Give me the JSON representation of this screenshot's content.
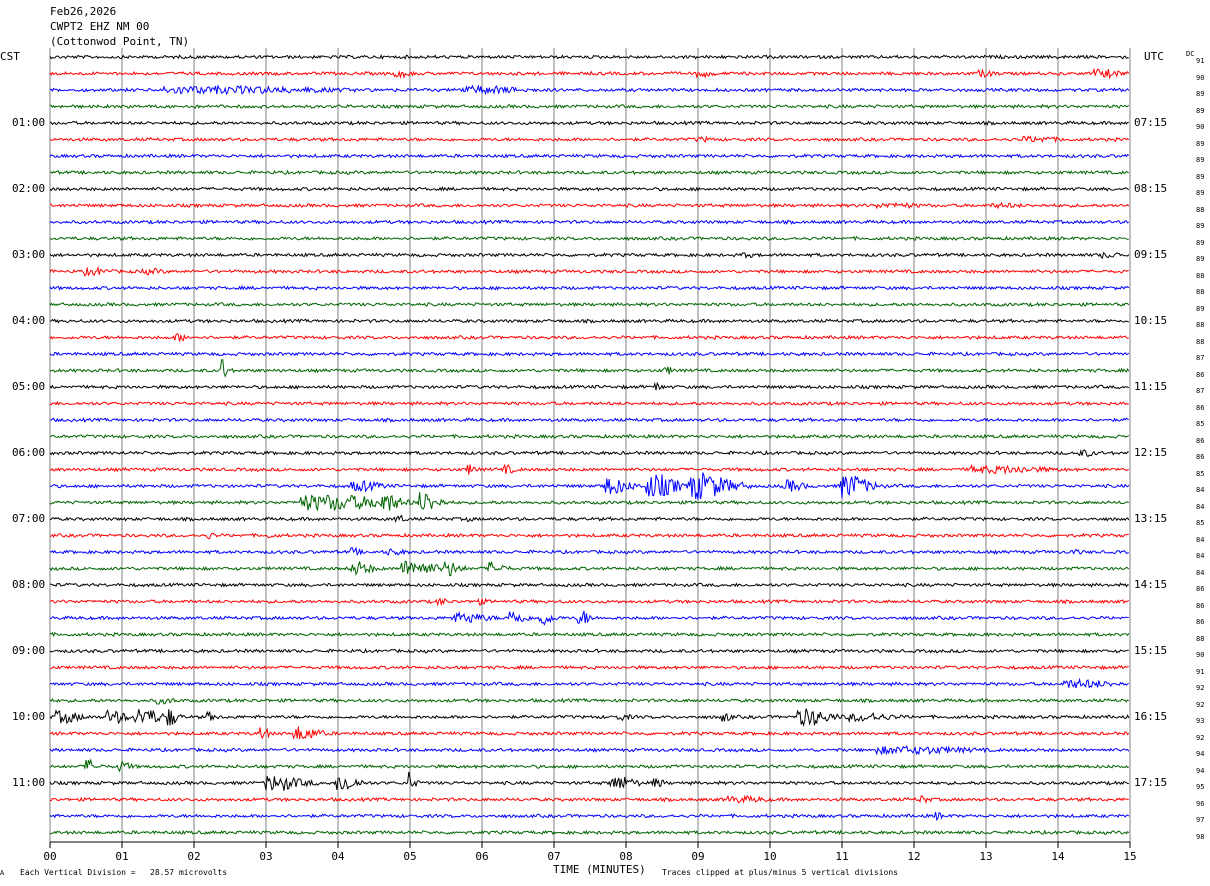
{
  "header": {
    "date": "Feb26,2026",
    "station": "CWPT2 EHZ NM 00",
    "location": "(Cottonwod Point, TN)"
  },
  "left_tz": "CST",
  "right_tz": "UTC",
  "dc_title": "DC",
  "footer": {
    "scale_note": "Each Vertical Division =   28.57 microvolts",
    "xlabel": "TIME (MINUTES)",
    "clip_note": "Traces clipped at plus/minus 5 vertical divisions",
    "corner_mark": "A"
  },
  "colors": {
    "trace_cycle": [
      "#000000",
      "#ff0000",
      "#0000ff",
      "#006400"
    ],
    "grid": "#808080"
  },
  "chart_data": {
    "type": "line",
    "title": "",
    "xlabel": "TIME (MINUTES)",
    "x_range": [
      0,
      15
    ],
    "x_ticks": [
      "00",
      "01",
      "02",
      "03",
      "04",
      "05",
      "06",
      "07",
      "08",
      "09",
      "10",
      "11",
      "12",
      "13",
      "14",
      "15"
    ],
    "grid": true,
    "left_hour_labels": [
      "01:00",
      "02:00",
      "03:00",
      "04:00",
      "05:00",
      "06:00",
      "07:00",
      "08:00",
      "09:00",
      "10:00",
      "11:00"
    ],
    "right_hour_labels": [
      "07:15",
      "08:15",
      "09:15",
      "10:15",
      "11:15",
      "12:15",
      "13:15",
      "14:15",
      "15:15",
      "16:15",
      "17:15"
    ],
    "dc_offsets": [
      91,
      90,
      89,
      89,
      90,
      89,
      89,
      89,
      89,
      88,
      89,
      89,
      89,
      88,
      88,
      89,
      88,
      88,
      87,
      86,
      87,
      86,
      85,
      86,
      86,
      85,
      84,
      84,
      85,
      84,
      84,
      84,
      86,
      86,
      86,
      88,
      90,
      91,
      92,
      92,
      93,
      92,
      94,
      94,
      95,
      96,
      97,
      98
    ],
    "events": [
      {
        "trace": 1,
        "t": 4.8,
        "dur": 0.3,
        "amp": 0.4
      },
      {
        "trace": 1,
        "t": 9.0,
        "dur": 0.3,
        "amp": 0.4
      },
      {
        "trace": 1,
        "t": 12.9,
        "dur": 0.3,
        "amp": 0.4
      },
      {
        "trace": 1,
        "t": 14.5,
        "dur": 0.5,
        "amp": 0.5
      },
      {
        "trace": 2,
        "t": 1.6,
        "dur": 3.2,
        "amp": 0.45
      },
      {
        "trace": 2,
        "t": 5.7,
        "dur": 1.2,
        "amp": 0.45
      },
      {
        "trace": 5,
        "t": 9.0,
        "dur": 0.3,
        "amp": 0.3
      },
      {
        "trace": 5,
        "t": 13.5,
        "dur": 0.8,
        "amp": 0.35
      },
      {
        "trace": 9,
        "t": 11.5,
        "dur": 1.0,
        "amp": 0.3
      },
      {
        "trace": 9,
        "t": 13.1,
        "dur": 0.6,
        "amp": 0.3
      },
      {
        "trace": 12,
        "t": 9.6,
        "dur": 0.3,
        "amp": 0.3
      },
      {
        "trace": 12,
        "t": 14.6,
        "dur": 0.5,
        "amp": 0.35
      },
      {
        "trace": 13,
        "t": 0.5,
        "dur": 0.4,
        "amp": 0.45
      },
      {
        "trace": 13,
        "t": 1.3,
        "dur": 0.4,
        "amp": 0.35
      },
      {
        "trace": 17,
        "t": 1.75,
        "dur": 0.15,
        "amp": 0.5
      },
      {
        "trace": 19,
        "t": 2.37,
        "dur": 0.05,
        "amp": 1.6
      },
      {
        "trace": 19,
        "t": 8.55,
        "dur": 0.1,
        "amp": 0.5
      },
      {
        "trace": 20,
        "t": 8.4,
        "dur": 0.1,
        "amp": 0.5
      },
      {
        "trace": 24,
        "t": 14.3,
        "dur": 0.3,
        "amp": 0.4
      },
      {
        "trace": 25,
        "t": 5.8,
        "dur": 0.1,
        "amp": 0.6
      },
      {
        "trace": 25,
        "t": 6.3,
        "dur": 0.2,
        "amp": 0.5
      },
      {
        "trace": 25,
        "t": 12.8,
        "dur": 1.5,
        "amp": 0.45
      },
      {
        "trace": 26,
        "t": 4.2,
        "dur": 0.5,
        "amp": 0.6
      },
      {
        "trace": 26,
        "t": 7.7,
        "dur": 0.4,
        "amp": 1.0
      },
      {
        "trace": 26,
        "t": 8.3,
        "dur": 0.5,
        "amp": 1.3
      },
      {
        "trace": 26,
        "t": 8.9,
        "dur": 0.6,
        "amp": 1.6
      },
      {
        "trace": 26,
        "t": 10.2,
        "dur": 0.3,
        "amp": 0.7
      },
      {
        "trace": 26,
        "t": 11.0,
        "dur": 0.4,
        "amp": 1.4
      },
      {
        "trace": 27,
        "t": 3.5,
        "dur": 1.6,
        "amp": 0.9
      },
      {
        "trace": 27,
        "t": 4.6,
        "dur": 0.3,
        "amp": 1.1
      },
      {
        "trace": 27,
        "t": 5.15,
        "dur": 0.25,
        "amp": 1.2
      },
      {
        "trace": 28,
        "t": 4.8,
        "dur": 0.2,
        "amp": 0.4
      },
      {
        "trace": 28,
        "t": 5.8,
        "dur": 0.1,
        "amp": 0.3
      },
      {
        "trace": 29,
        "t": 2.2,
        "dur": 0.1,
        "amp": 0.4
      },
      {
        "trace": 29,
        "t": 3.0,
        "dur": 0.2,
        "amp": 0.3
      },
      {
        "trace": 30,
        "t": 4.2,
        "dur": 0.1,
        "amp": 0.5
      },
      {
        "trace": 30,
        "t": 4.7,
        "dur": 0.3,
        "amp": 0.4
      },
      {
        "trace": 30,
        "t": 14.2,
        "dur": 0.2,
        "amp": 0.3
      },
      {
        "trace": 31,
        "t": 4.2,
        "dur": 0.3,
        "amp": 0.8
      },
      {
        "trace": 31,
        "t": 4.9,
        "dur": 0.6,
        "amp": 0.9
      },
      {
        "trace": 31,
        "t": 5.5,
        "dur": 0.2,
        "amp": 0.9
      },
      {
        "trace": 31,
        "t": 6.1,
        "dur": 0.2,
        "amp": 0.8
      },
      {
        "trace": 33,
        "t": 5.4,
        "dur": 0.1,
        "amp": 0.5
      },
      {
        "trace": 33,
        "t": 5.9,
        "dur": 0.2,
        "amp": 0.4
      },
      {
        "trace": 34,
        "t": 5.6,
        "dur": 0.6,
        "amp": 0.6
      },
      {
        "trace": 34,
        "t": 6.4,
        "dur": 0.2,
        "amp": 0.9
      },
      {
        "trace": 34,
        "t": 6.8,
        "dur": 0.2,
        "amp": 0.8
      },
      {
        "trace": 34,
        "t": 7.35,
        "dur": 0.15,
        "amp": 0.9
      },
      {
        "trace": 38,
        "t": 14.1,
        "dur": 0.9,
        "amp": 0.5
      },
      {
        "trace": 39,
        "t": 1.5,
        "dur": 0.3,
        "amp": 0.4
      },
      {
        "trace": 40,
        "t": 0.1,
        "dur": 0.4,
        "amp": 0.7
      },
      {
        "trace": 40,
        "t": 0.8,
        "dur": 0.3,
        "amp": 0.8
      },
      {
        "trace": 40,
        "t": 1.2,
        "dur": 0.4,
        "amp": 1.0
      },
      {
        "trace": 40,
        "t": 1.65,
        "dur": 0.1,
        "amp": 1.1
      },
      {
        "trace": 40,
        "t": 2.2,
        "dur": 0.1,
        "amp": 0.6
      },
      {
        "trace": 40,
        "t": 7.9,
        "dur": 0.2,
        "amp": 0.4
      },
      {
        "trace": 40,
        "t": 9.35,
        "dur": 0.1,
        "amp": 0.6
      },
      {
        "trace": 40,
        "t": 10.4,
        "dur": 0.5,
        "amp": 1.0
      },
      {
        "trace": 40,
        "t": 11.1,
        "dur": 0.8,
        "amp": 0.5
      },
      {
        "trace": 41,
        "t": 2.92,
        "dur": 0.08,
        "amp": 1.0
      },
      {
        "trace": 41,
        "t": 3.4,
        "dur": 0.4,
        "amp": 0.8
      },
      {
        "trace": 42,
        "t": 11.5,
        "dur": 1.8,
        "amp": 0.45
      },
      {
        "trace": 43,
        "t": 0.5,
        "dur": 0.15,
        "amp": 0.8
      },
      {
        "trace": 43,
        "t": 0.95,
        "dur": 0.2,
        "amp": 0.6
      },
      {
        "trace": 44,
        "t": 3.0,
        "dur": 0.6,
        "amp": 0.9
      },
      {
        "trace": 44,
        "t": 4.0,
        "dur": 0.3,
        "amp": 1.0
      },
      {
        "trace": 44,
        "t": 4.98,
        "dur": 0.05,
        "amp": 1.3
      },
      {
        "trace": 44,
        "t": 7.8,
        "dur": 0.4,
        "amp": 0.8
      },
      {
        "trace": 44,
        "t": 8.4,
        "dur": 0.1,
        "amp": 0.7
      },
      {
        "trace": 45,
        "t": 9.4,
        "dur": 0.8,
        "amp": 0.4
      },
      {
        "trace": 45,
        "t": 12.1,
        "dur": 0.1,
        "amp": 0.5
      },
      {
        "trace": 46,
        "t": 12.3,
        "dur": 0.1,
        "amp": 0.5
      }
    ]
  }
}
